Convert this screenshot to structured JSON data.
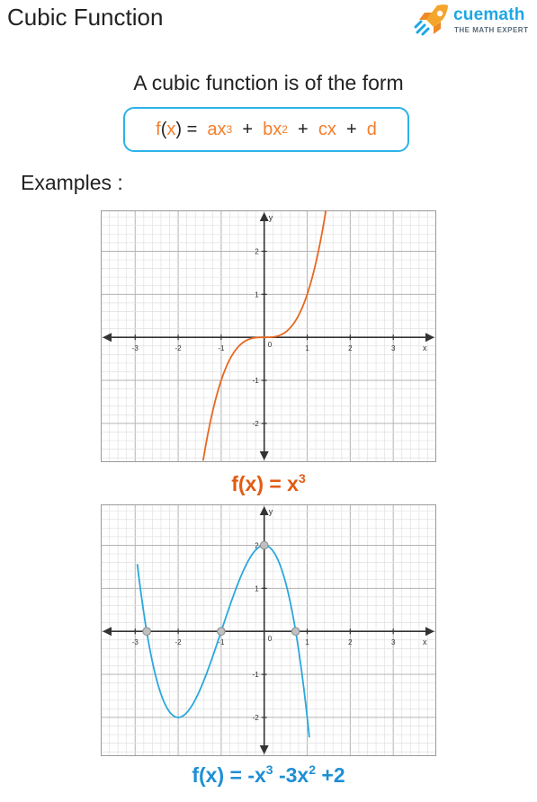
{
  "header": {
    "title": "Cubic Function",
    "brand_name": "cuemath",
    "brand_tagline": "THE MATH EXPERT",
    "brand_icon": "rocket-icon"
  },
  "intro": {
    "text": "A cubic function is of the form",
    "formula": {
      "lhs_f": "f",
      "lhs_x": "x",
      "a": "ax",
      "a_exp": "3",
      "b": "bx",
      "b_exp": "2",
      "c": "cx",
      "d": "d"
    }
  },
  "examples_label": "Examples :",
  "colors": {
    "orange": "#f47e2c",
    "curve1": "#e8681e",
    "curve2": "#2aa8dc",
    "caption1": "#e25b12",
    "caption2": "#1e8fd5",
    "accent": "#2bb3e8"
  },
  "chart_data": [
    {
      "type": "line",
      "xlabel": "x",
      "ylabel": "y",
      "origin_label": "0",
      "xlim": [
        -3.8,
        4
      ],
      "ylim": [
        -2.9,
        2.95
      ],
      "x_ticks": [
        -3,
        -2,
        -1,
        1,
        2,
        3
      ],
      "y_ticks": [
        -2,
        -1,
        1,
        2
      ],
      "x_tick_labels": [
        "-3",
        "-2",
        "-1",
        "1",
        "2",
        "3"
      ],
      "y_tick_labels": [
        "-2",
        "-1",
        "1",
        "2"
      ],
      "grid": true,
      "series": [
        {
          "function": "x^3",
          "x_range": [
            -1.42,
            1.44
          ]
        }
      ],
      "points": [],
      "caption": {
        "text": "f(x) = x",
        "exp": "3"
      }
    },
    {
      "type": "line",
      "xlabel": "x",
      "ylabel": "y",
      "origin_label": "0",
      "xlim": [
        -3.8,
        4
      ],
      "ylim": [
        -2.9,
        2.95
      ],
      "x_ticks": [
        -3,
        -2,
        -1,
        1,
        2,
        3
      ],
      "y_ticks": [
        -2,
        -1,
        1,
        2
      ],
      "x_tick_labels": [
        "-3",
        "-2",
        "-1",
        "1",
        "2",
        "3"
      ],
      "y_tick_labels": [
        "-2",
        "-1",
        "1",
        "2"
      ],
      "grid": true,
      "series": [
        {
          "function": "-x^3-3x^2+2",
          "x_range": [
            -2.95,
            1.05
          ]
        }
      ],
      "points": [
        {
          "x": -2.73,
          "y": 0
        },
        {
          "x": -1,
          "y": 0
        },
        {
          "x": 0,
          "y": 2
        },
        {
          "x": 0.73,
          "y": 0
        }
      ],
      "caption": {
        "text": "f(x) =  -x",
        "exp1": "3",
        "mid": " -3x",
        "exp2": "2",
        "end": " +2"
      }
    }
  ]
}
